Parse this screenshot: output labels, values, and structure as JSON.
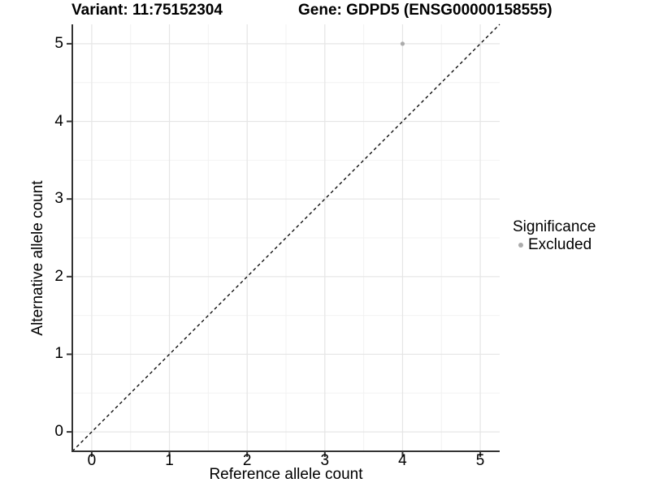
{
  "figure": {
    "title_left": "Variant: 11:75152304",
    "title_right": "Gene: GDPD5 (ENSG00000158555)"
  },
  "chart_data": {
    "type": "scatter",
    "title_left": "Variant: 11:75152304",
    "title_right": "Gene: GDPD5 (ENSG00000158555)",
    "xlabel": "Reference allele count",
    "ylabel": "Alternative allele count",
    "xlim": [
      -0.25,
      5.25
    ],
    "ylim": [
      -0.25,
      5.25
    ],
    "x_ticks": [
      0,
      1,
      2,
      3,
      4,
      5
    ],
    "y_ticks": [
      0,
      1,
      2,
      3,
      4,
      5
    ],
    "x_tick_labels": [
      "0",
      "1",
      "2",
      "3",
      "4",
      "5"
    ],
    "y_tick_labels": [
      "0",
      "1",
      "2",
      "3",
      "4",
      "5"
    ],
    "x_minor_ticks": [
      0.5,
      1.5,
      2.5,
      3.5,
      4.5
    ],
    "y_minor_ticks": [
      0.5,
      1.5,
      2.5,
      3.5,
      4.5
    ],
    "grid": "major+minor",
    "series": [
      {
        "name": "Excluded",
        "color": "#ababab",
        "points": [
          {
            "x": 4,
            "y": 5
          }
        ]
      }
    ],
    "reference_line": {
      "kind": "identity",
      "slope": 1,
      "intercept": 0,
      "style": "dashed",
      "color": "#000000"
    },
    "legend": {
      "title": "Significance",
      "position": "right",
      "entries": [
        {
          "label": "Excluded",
          "color": "#ababab",
          "marker": "dot"
        }
      ]
    }
  },
  "colors": {
    "background": "#ffffff",
    "grid_major": "#e5e5e5",
    "grid_minor": "#f2f2f2",
    "axis": "#333333",
    "text": "#000000",
    "point": "#ababab"
  }
}
